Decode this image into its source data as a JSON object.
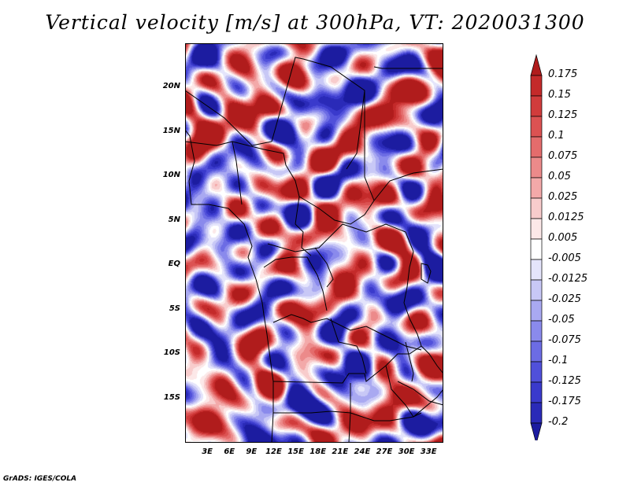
{
  "title": "Vertical velocity [m/s] at 300hPa, VT: 2020031300",
  "credit": "GrADS: IGES/COLA",
  "map": {
    "lon_range": [
      0,
      35
    ],
    "lat_range": [
      -20,
      25
    ],
    "lat_ticks": [
      {
        "value": 20,
        "label": "20N"
      },
      {
        "value": 15,
        "label": "15N"
      },
      {
        "value": 10,
        "label": "10N"
      },
      {
        "value": 5,
        "label": "5N"
      },
      {
        "value": 0,
        "label": "EQ"
      },
      {
        "value": -5,
        "label": "5S"
      },
      {
        "value": -10,
        "label": "10S"
      },
      {
        "value": -15,
        "label": "15S"
      }
    ],
    "lon_ticks": [
      {
        "value": 3,
        "label": "3E"
      },
      {
        "value": 6,
        "label": "6E"
      },
      {
        "value": 9,
        "label": "9E"
      },
      {
        "value": 12,
        "label": "12E"
      },
      {
        "value": 15,
        "label": "15E"
      },
      {
        "value": 18,
        "label": "18E"
      },
      {
        "value": 21,
        "label": "21E"
      },
      {
        "value": 24,
        "label": "24E"
      },
      {
        "value": 27,
        "label": "27E"
      },
      {
        "value": 30,
        "label": "30E"
      },
      {
        "value": 33,
        "label": "33E"
      }
    ]
  },
  "colorbar": {
    "levels": [
      "0.175",
      "0.15",
      "0.125",
      "0.1",
      "0.075",
      "0.05",
      "0.025",
      "0.0125",
      "0.005",
      "-0.005",
      "-0.0125",
      "-0.025",
      "-0.05",
      "-0.075",
      "-0.1",
      "-0.125",
      "-0.175",
      "-0.2"
    ],
    "colors": [
      "#b01c1c",
      "#c42a2a",
      "#d13c3c",
      "#dc5252",
      "#e46c6c",
      "#ec8a8a",
      "#f3a9a9",
      "#f8cccc",
      "#fce8e8",
      "#ffffff",
      "#e4e4fb",
      "#c8c8f6",
      "#a9a9f1",
      "#8a8aec",
      "#6c6ce4",
      "#5050da",
      "#3a3acc",
      "#2a2ab8",
      "#1c1ca0"
    ]
  }
}
